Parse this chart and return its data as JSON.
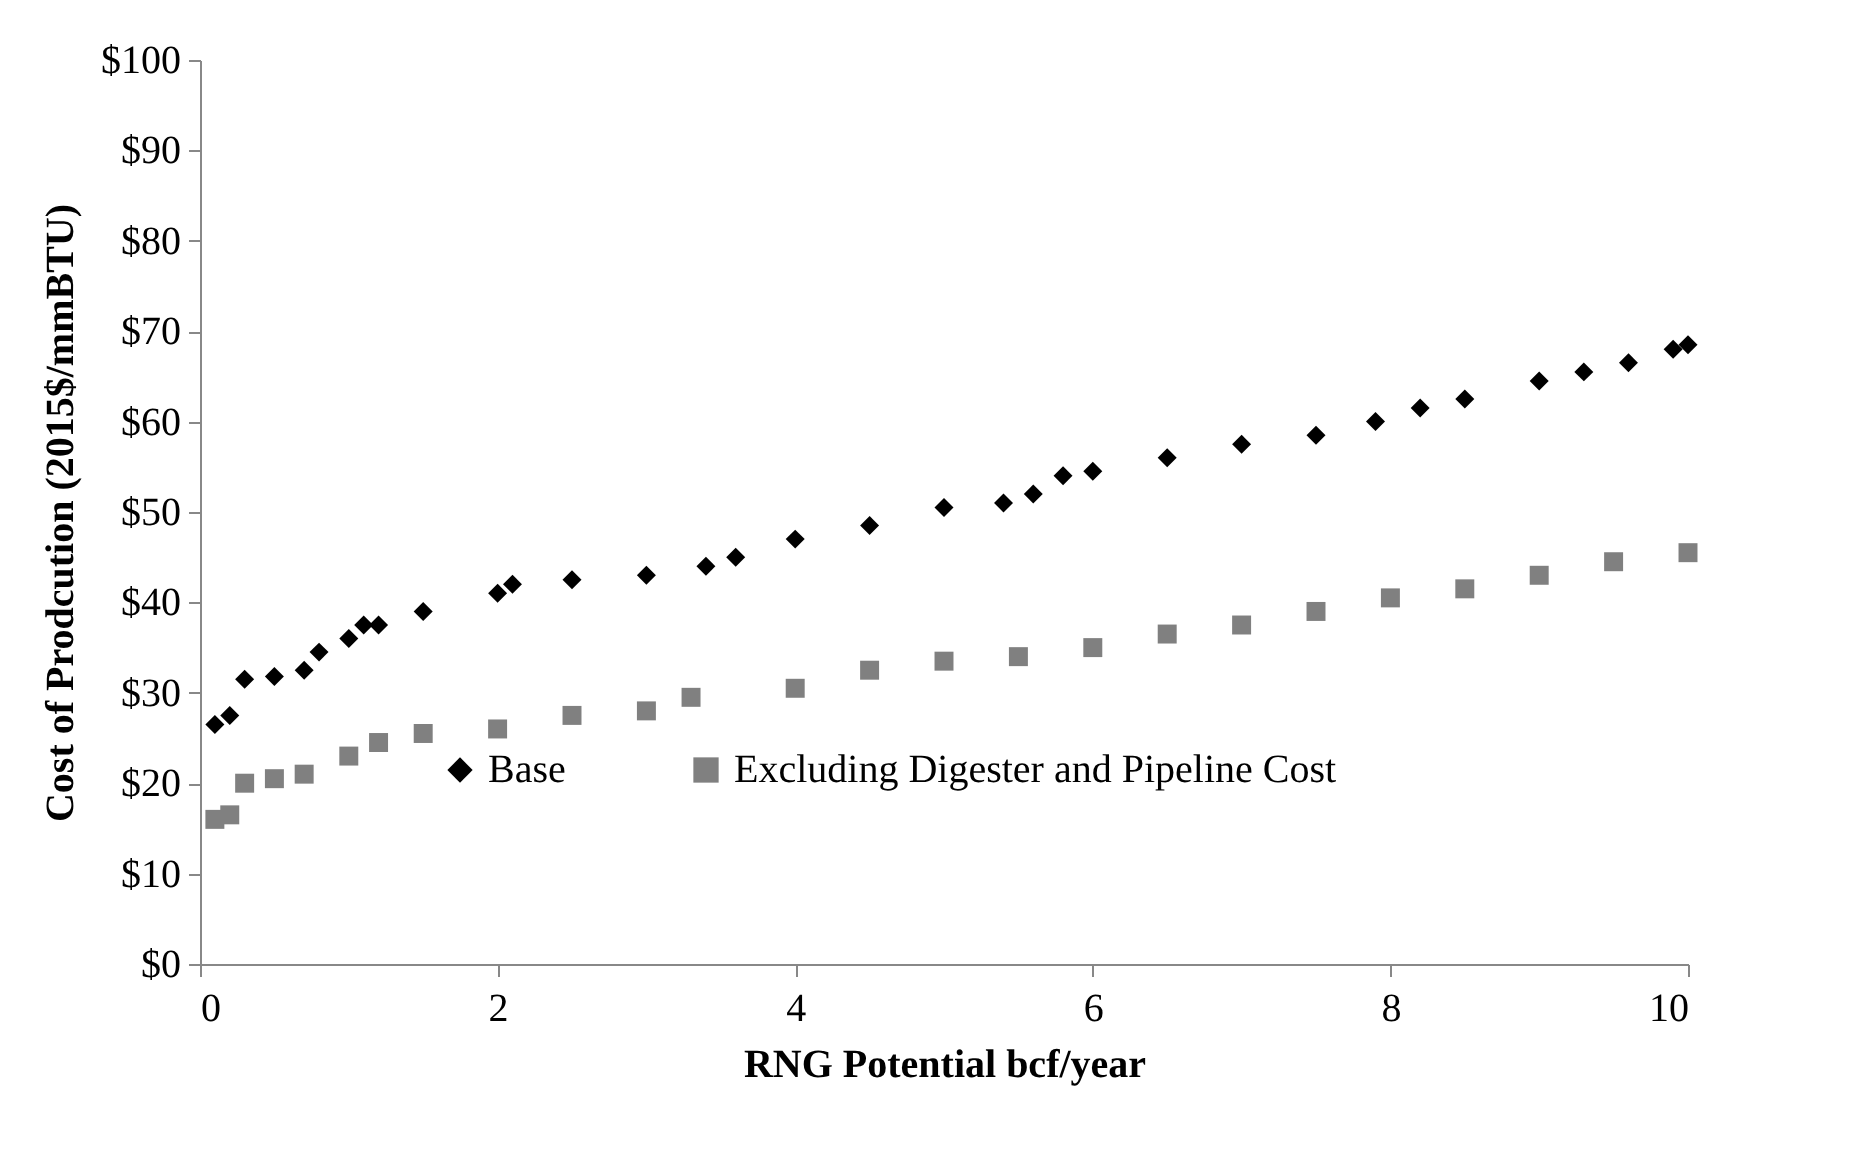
{
  "chart_data": {
    "type": "scatter",
    "xlabel": "RNG Potential bcf/year",
    "ylabel": "Cost of Prodcution (2015$/mmBTU)",
    "xlim": [
      0,
      10
    ],
    "xticks": [
      0,
      2,
      4,
      6,
      8,
      10
    ],
    "ylim": [
      0,
      100
    ],
    "yticks": [
      {
        "value": 0,
        "label": "$0"
      },
      {
        "value": 10,
        "label": "$10"
      },
      {
        "value": 20,
        "label": "$20"
      },
      {
        "value": 30,
        "label": "$30"
      },
      {
        "value": 40,
        "label": "$40"
      },
      {
        "value": 50,
        "label": "$50"
      },
      {
        "value": 60,
        "label": "$60"
      },
      {
        "value": 70,
        "label": "$70"
      },
      {
        "value": 80,
        "label": "$80"
      },
      {
        "value": 90,
        "label": "$90"
      },
      {
        "value": 100,
        "label": "$100"
      }
    ],
    "grid": false,
    "legend": "bottom",
    "series": [
      {
        "name": "Base",
        "color": "#000000",
        "marker": "diamond",
        "x": [
          0.1,
          0.2,
          0.3,
          0.5,
          0.7,
          0.8,
          1.0,
          1.1,
          1.2,
          1.5,
          2.0,
          2.1,
          2.5,
          3.0,
          3.4,
          3.6,
          4.0,
          4.5,
          5.0,
          5.4,
          5.6,
          5.8,
          6.0,
          6.5,
          7.0,
          7.5,
          7.9,
          8.2,
          8.5,
          9.0,
          9.3,
          9.6,
          9.9,
          10.0
        ],
        "values": [
          26.5,
          27.5,
          31.5,
          31.8,
          32.5,
          34.5,
          36,
          37.5,
          37.5,
          39,
          41,
          42,
          42.5,
          43,
          44,
          45,
          47,
          48.5,
          50.5,
          51,
          52,
          54,
          54.5,
          56,
          57.5,
          58.5,
          60,
          61.5,
          62.5,
          64.5,
          65.5,
          66.5,
          68,
          68.5
        ]
      },
      {
        "name": "Excluding Digester and Pipeline Cost",
        "color": "#808080",
        "marker": "square",
        "x": [
          0.1,
          0.2,
          0.3,
          0.5,
          0.7,
          1.0,
          1.2,
          1.5,
          2.0,
          2.5,
          3.0,
          3.3,
          4.0,
          4.5,
          5.0,
          5.5,
          6.0,
          6.5,
          7.0,
          7.5,
          8.0,
          8.5,
          9.0,
          9.5,
          10.0
        ],
        "values": [
          16,
          16.5,
          20,
          20.5,
          21,
          23,
          24.5,
          25.5,
          26,
          27.5,
          28,
          29.5,
          30.5,
          32.5,
          33.5,
          34,
          35,
          36.5,
          37.5,
          39,
          40.5,
          41.5,
          43,
          44.5,
          45.5
        ]
      }
    ]
  }
}
